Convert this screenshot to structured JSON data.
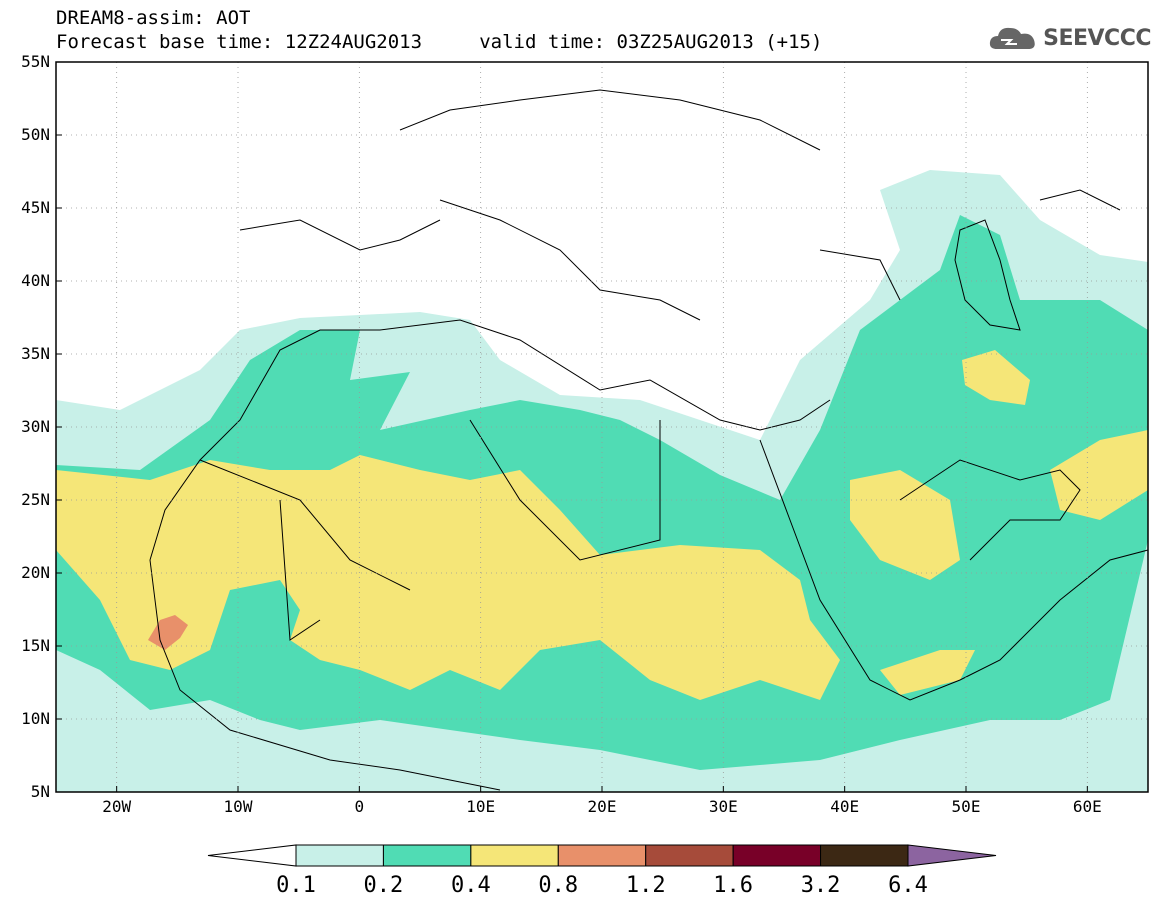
{
  "header": {
    "line1": "DREAM8-assim: AOT",
    "line2": "Forecast base time: 12Z24AUG2013     valid time: 03Z25AUG2013 (+15)"
  },
  "logo": {
    "text": "SEEVCCC",
    "icon": "cloud-logo-icon"
  },
  "map": {
    "lat_labels": [
      "55N",
      "50N",
      "45N",
      "40N",
      "35N",
      "30N",
      "25N",
      "20N",
      "15N",
      "10N",
      "5N"
    ],
    "lon_labels": [
      "20W",
      "10W",
      "0",
      "10E",
      "20E",
      "30E",
      "40E",
      "50E",
      "60E"
    ]
  },
  "colorbar": {
    "labels": [
      "0.1",
      "0.2",
      "0.4",
      "0.8",
      "1.2",
      "1.6",
      "3.2",
      "6.4"
    ],
    "colors": [
      "#ffffff",
      "#c8f0e8",
      "#50dcb4",
      "#f5e678",
      "#e8906a",
      "#a64b3a",
      "#780028",
      "#3c2814",
      "#8c64a0"
    ]
  }
}
